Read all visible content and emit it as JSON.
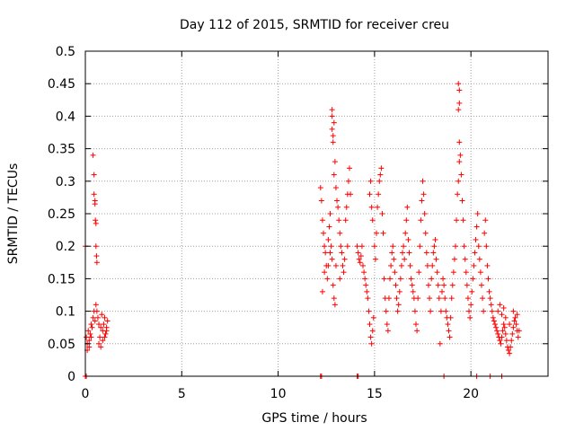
{
  "chart_data": {
    "type": "scatter",
    "title": "Day 112 of 2015, SRMTID for receiver creu",
    "xlabel": "GPS time / hours",
    "ylabel": "SRMTID / TECUs",
    "xlim": [
      0,
      24
    ],
    "ylim": [
      0,
      0.5
    ],
    "x_ticks": [
      0,
      5,
      10,
      15,
      20
    ],
    "x_tick_labels": [
      "0",
      "5",
      "10",
      "15",
      "20"
    ],
    "y_ticks": [
      0,
      0.05,
      0.1,
      0.15,
      0.2,
      0.25,
      0.3,
      0.35,
      0.4,
      0.45,
      0.5
    ],
    "y_tick_labels": [
      "0",
      "0.05",
      "0.1",
      "0.15",
      "0.2",
      "0.25",
      "0.3",
      "0.35",
      "0.4",
      "0.45",
      "0.5"
    ],
    "grid": true,
    "marker": "plus",
    "series": [
      {
        "name": "SRMTID",
        "color": "#ff0000",
        "points": [
          [
            0.0,
            0.2
          ],
          [
            0.05,
            0.06
          ],
          [
            0.1,
            0.04
          ],
          [
            0.1,
            0.05
          ],
          [
            0.15,
            0.07
          ],
          [
            0.2,
            0.055
          ],
          [
            0.25,
            0.065
          ],
          [
            0.3,
            0.08
          ],
          [
            0.35,
            0.075
          ],
          [
            0.4,
            0.09
          ],
          [
            0.45,
            0.1
          ],
          [
            0.5,
            0.085
          ],
          [
            0.4,
            0.34
          ],
          [
            0.45,
            0.31
          ],
          [
            0.45,
            0.28
          ],
          [
            0.5,
            0.27
          ],
          [
            0.5,
            0.265
          ],
          [
            0.52,
            0.24
          ],
          [
            0.55,
            0.235
          ],
          [
            0.55,
            0.2
          ],
          [
            0.58,
            0.185
          ],
          [
            0.6,
            0.175
          ],
          [
            0.55,
            0.11
          ],
          [
            0.6,
            0.1
          ],
          [
            0.65,
            0.09
          ],
          [
            0.7,
            0.08
          ],
          [
            0.75,
            0.06
          ],
          [
            0.8,
            0.075
          ],
          [
            0.85,
            0.095
          ],
          [
            0.9,
            0.07
          ],
          [
            0.95,
            0.08
          ],
          [
            1.0,
            0.09
          ],
          [
            1.05,
            0.065
          ],
          [
            1.1,
            0.075
          ],
          [
            1.15,
            0.085
          ],
          [
            0.7,
            0.05
          ],
          [
            0.8,
            0.045
          ],
          [
            0.9,
            0.055
          ],
          [
            1.0,
            0.06
          ],
          [
            1.1,
            0.07
          ],
          [
            0.3,
            0.06
          ],
          [
            0.2,
            0.045
          ],
          [
            0.0,
            0.0
          ],
          [
            0.05,
            0.0
          ],
          [
            12.2,
            0.0
          ],
          [
            12.25,
            0.0
          ],
          [
            14.1,
            0.0
          ],
          [
            14.15,
            0.0
          ],
          [
            18.6,
            0.0
          ],
          [
            20.3,
            0.0
          ],
          [
            21.0,
            0.0
          ],
          [
            21.6,
            0.0
          ],
          [
            12.2,
            0.29
          ],
          [
            12.25,
            0.27
          ],
          [
            12.3,
            0.24
          ],
          [
            12.35,
            0.22
          ],
          [
            12.4,
            0.2
          ],
          [
            12.45,
            0.19
          ],
          [
            12.5,
            0.17
          ],
          [
            12.55,
            0.15
          ],
          [
            12.3,
            0.13
          ],
          [
            12.6,
            0.21
          ],
          [
            12.65,
            0.23
          ],
          [
            12.7,
            0.25
          ],
          [
            12.75,
            0.2
          ],
          [
            12.8,
            0.18
          ],
          [
            12.85,
            0.14
          ],
          [
            12.9,
            0.12
          ],
          [
            12.95,
            0.11
          ],
          [
            12.8,
            0.4
          ],
          [
            12.8,
            0.38
          ],
          [
            12.85,
            0.37
          ],
          [
            12.8,
            0.41
          ],
          [
            12.9,
            0.39
          ],
          [
            12.85,
            0.36
          ],
          [
            12.95,
            0.33
          ],
          [
            12.9,
            0.31
          ],
          [
            13.0,
            0.29
          ],
          [
            13.05,
            0.27
          ],
          [
            13.1,
            0.26
          ],
          [
            13.15,
            0.24
          ],
          [
            13.2,
            0.22
          ],
          [
            13.25,
            0.2
          ],
          [
            13.3,
            0.19
          ],
          [
            13.35,
            0.17
          ],
          [
            13.4,
            0.16
          ],
          [
            13.45,
            0.18
          ],
          [
            13.5,
            0.24
          ],
          [
            13.55,
            0.26
          ],
          [
            13.6,
            0.28
          ],
          [
            13.65,
            0.3
          ],
          [
            13.7,
            0.32
          ],
          [
            13.75,
            0.28
          ],
          [
            13.6,
            0.2
          ],
          [
            12.6,
            0.17
          ],
          [
            12.4,
            0.16
          ],
          [
            12.7,
            0.19
          ],
          [
            13.0,
            0.17
          ],
          [
            13.2,
            0.15
          ],
          [
            14.1,
            0.2
          ],
          [
            14.15,
            0.19
          ],
          [
            14.2,
            0.18
          ],
          [
            14.25,
            0.175
          ],
          [
            14.3,
            0.185
          ],
          [
            14.35,
            0.2
          ],
          [
            14.4,
            0.17
          ],
          [
            14.45,
            0.16
          ],
          [
            14.5,
            0.15
          ],
          [
            14.55,
            0.14
          ],
          [
            14.6,
            0.13
          ],
          [
            14.65,
            0.12
          ],
          [
            14.7,
            0.1
          ],
          [
            14.75,
            0.08
          ],
          [
            14.8,
            0.06
          ],
          [
            14.85,
            0.05
          ],
          [
            14.9,
            0.07
          ],
          [
            14.95,
            0.09
          ],
          [
            14.75,
            0.28
          ],
          [
            14.8,
            0.3
          ],
          [
            14.85,
            0.26
          ],
          [
            14.9,
            0.24
          ],
          [
            15.0,
            0.2
          ],
          [
            15.05,
            0.18
          ],
          [
            15.1,
            0.22
          ],
          [
            15.15,
            0.26
          ],
          [
            15.2,
            0.28
          ],
          [
            15.25,
            0.3
          ],
          [
            15.3,
            0.31
          ],
          [
            15.35,
            0.32
          ],
          [
            15.4,
            0.25
          ],
          [
            15.45,
            0.22
          ],
          [
            15.5,
            0.15
          ],
          [
            15.55,
            0.12
          ],
          [
            15.6,
            0.1
          ],
          [
            15.65,
            0.08
          ],
          [
            15.7,
            0.07
          ],
          [
            15.75,
            0.12
          ],
          [
            15.8,
            0.15
          ],
          [
            15.85,
            0.17
          ],
          [
            15.9,
            0.19
          ],
          [
            15.95,
            0.2
          ],
          [
            16.0,
            0.18
          ],
          [
            16.05,
            0.16
          ],
          [
            16.1,
            0.14
          ],
          [
            16.15,
            0.12
          ],
          [
            16.2,
            0.1
          ],
          [
            16.25,
            0.11
          ],
          [
            16.3,
            0.13
          ],
          [
            16.35,
            0.15
          ],
          [
            16.4,
            0.17
          ],
          [
            16.45,
            0.19
          ],
          [
            16.5,
            0.2
          ],
          [
            16.55,
            0.18
          ],
          [
            16.6,
            0.22
          ],
          [
            16.65,
            0.24
          ],
          [
            16.7,
            0.26
          ],
          [
            16.75,
            0.21
          ],
          [
            16.8,
            0.19
          ],
          [
            16.85,
            0.17
          ],
          [
            16.9,
            0.15
          ],
          [
            16.95,
            0.14
          ],
          [
            17.0,
            0.13
          ],
          [
            17.05,
            0.12
          ],
          [
            17.1,
            0.1
          ],
          [
            17.15,
            0.08
          ],
          [
            17.2,
            0.07
          ],
          [
            17.25,
            0.12
          ],
          [
            17.3,
            0.16
          ],
          [
            17.35,
            0.2
          ],
          [
            17.4,
            0.24
          ],
          [
            17.45,
            0.27
          ],
          [
            17.5,
            0.3
          ],
          [
            17.55,
            0.28
          ],
          [
            17.6,
            0.25
          ],
          [
            17.65,
            0.22
          ],
          [
            17.7,
            0.19
          ],
          [
            17.75,
            0.17
          ],
          [
            17.8,
            0.14
          ],
          [
            17.85,
            0.12
          ],
          [
            17.9,
            0.1
          ],
          [
            17.95,
            0.15
          ],
          [
            18.0,
            0.17
          ],
          [
            18.05,
            0.19
          ],
          [
            18.1,
            0.2
          ],
          [
            18.15,
            0.21
          ],
          [
            18.2,
            0.18
          ],
          [
            18.25,
            0.16
          ],
          [
            18.3,
            0.14
          ],
          [
            18.35,
            0.12
          ],
          [
            18.4,
            0.05
          ],
          [
            18.45,
            0.1
          ],
          [
            18.5,
            0.13
          ],
          [
            18.55,
            0.15
          ],
          [
            18.6,
            0.14
          ],
          [
            18.65,
            0.12
          ],
          [
            18.7,
            0.1
          ],
          [
            18.75,
            0.09
          ],
          [
            18.8,
            0.08
          ],
          [
            18.85,
            0.07
          ],
          [
            18.9,
            0.06
          ],
          [
            18.95,
            0.09
          ],
          [
            19.0,
            0.12
          ],
          [
            19.05,
            0.14
          ],
          [
            19.1,
            0.16
          ],
          [
            19.15,
            0.18
          ],
          [
            19.2,
            0.2
          ],
          [
            19.25,
            0.24
          ],
          [
            19.3,
            0.28
          ],
          [
            19.35,
            0.3
          ],
          [
            19.4,
            0.33
          ],
          [
            19.4,
            0.36
          ],
          [
            19.35,
            0.41
          ],
          [
            19.4,
            0.42
          ],
          [
            19.35,
            0.45
          ],
          [
            19.4,
            0.44
          ],
          [
            19.45,
            0.34
          ],
          [
            19.5,
            0.31
          ],
          [
            19.55,
            0.27
          ],
          [
            19.6,
            0.24
          ],
          [
            19.65,
            0.2
          ],
          [
            19.7,
            0.18
          ],
          [
            19.75,
            0.16
          ],
          [
            19.8,
            0.14
          ],
          [
            19.85,
            0.12
          ],
          [
            19.9,
            0.1
          ],
          [
            19.95,
            0.09
          ],
          [
            20.0,
            0.11
          ],
          [
            20.05,
            0.13
          ],
          [
            20.1,
            0.15
          ],
          [
            20.15,
            0.17
          ],
          [
            20.2,
            0.19
          ],
          [
            20.25,
            0.21
          ],
          [
            20.3,
            0.23
          ],
          [
            20.35,
            0.25
          ],
          [
            20.4,
            0.2
          ],
          [
            20.45,
            0.18
          ],
          [
            20.5,
            0.16
          ],
          [
            20.55,
            0.14
          ],
          [
            20.6,
            0.12
          ],
          [
            20.65,
            0.1
          ],
          [
            20.7,
            0.22
          ],
          [
            20.75,
            0.24
          ],
          [
            20.8,
            0.2
          ],
          [
            20.85,
            0.17
          ],
          [
            20.9,
            0.15
          ],
          [
            20.95,
            0.13
          ],
          [
            21.0,
            0.12
          ],
          [
            21.05,
            0.11
          ],
          [
            21.1,
            0.1
          ],
          [
            21.15,
            0.09
          ],
          [
            21.2,
            0.085
          ],
          [
            21.25,
            0.08
          ],
          [
            21.3,
            0.075
          ],
          [
            21.35,
            0.07
          ],
          [
            21.4,
            0.065
          ],
          [
            21.45,
            0.06
          ],
          [
            21.5,
            0.055
          ],
          [
            21.55,
            0.05
          ],
          [
            21.6,
            0.06
          ],
          [
            21.65,
            0.07
          ],
          [
            21.7,
            0.08
          ],
          [
            21.75,
            0.075
          ],
          [
            21.8,
            0.065
          ],
          [
            21.85,
            0.055
          ],
          [
            21.9,
            0.045
          ],
          [
            21.95,
            0.04
          ],
          [
            22.0,
            0.035
          ],
          [
            22.05,
            0.045
          ],
          [
            22.1,
            0.055
          ],
          [
            22.15,
            0.065
          ],
          [
            22.2,
            0.075
          ],
          [
            22.25,
            0.085
          ],
          [
            22.3,
            0.09
          ],
          [
            22.35,
            0.08
          ],
          [
            22.4,
            0.07
          ],
          [
            22.45,
            0.06
          ],
          [
            22.5,
            0.07
          ],
          [
            21.4,
            0.1
          ],
          [
            21.5,
            0.11
          ],
          [
            21.6,
            0.095
          ],
          [
            21.7,
            0.105
          ],
          [
            21.8,
            0.09
          ],
          [
            22.0,
            0.08
          ],
          [
            22.2,
            0.1
          ],
          [
            22.4,
            0.095
          ]
        ]
      }
    ]
  }
}
